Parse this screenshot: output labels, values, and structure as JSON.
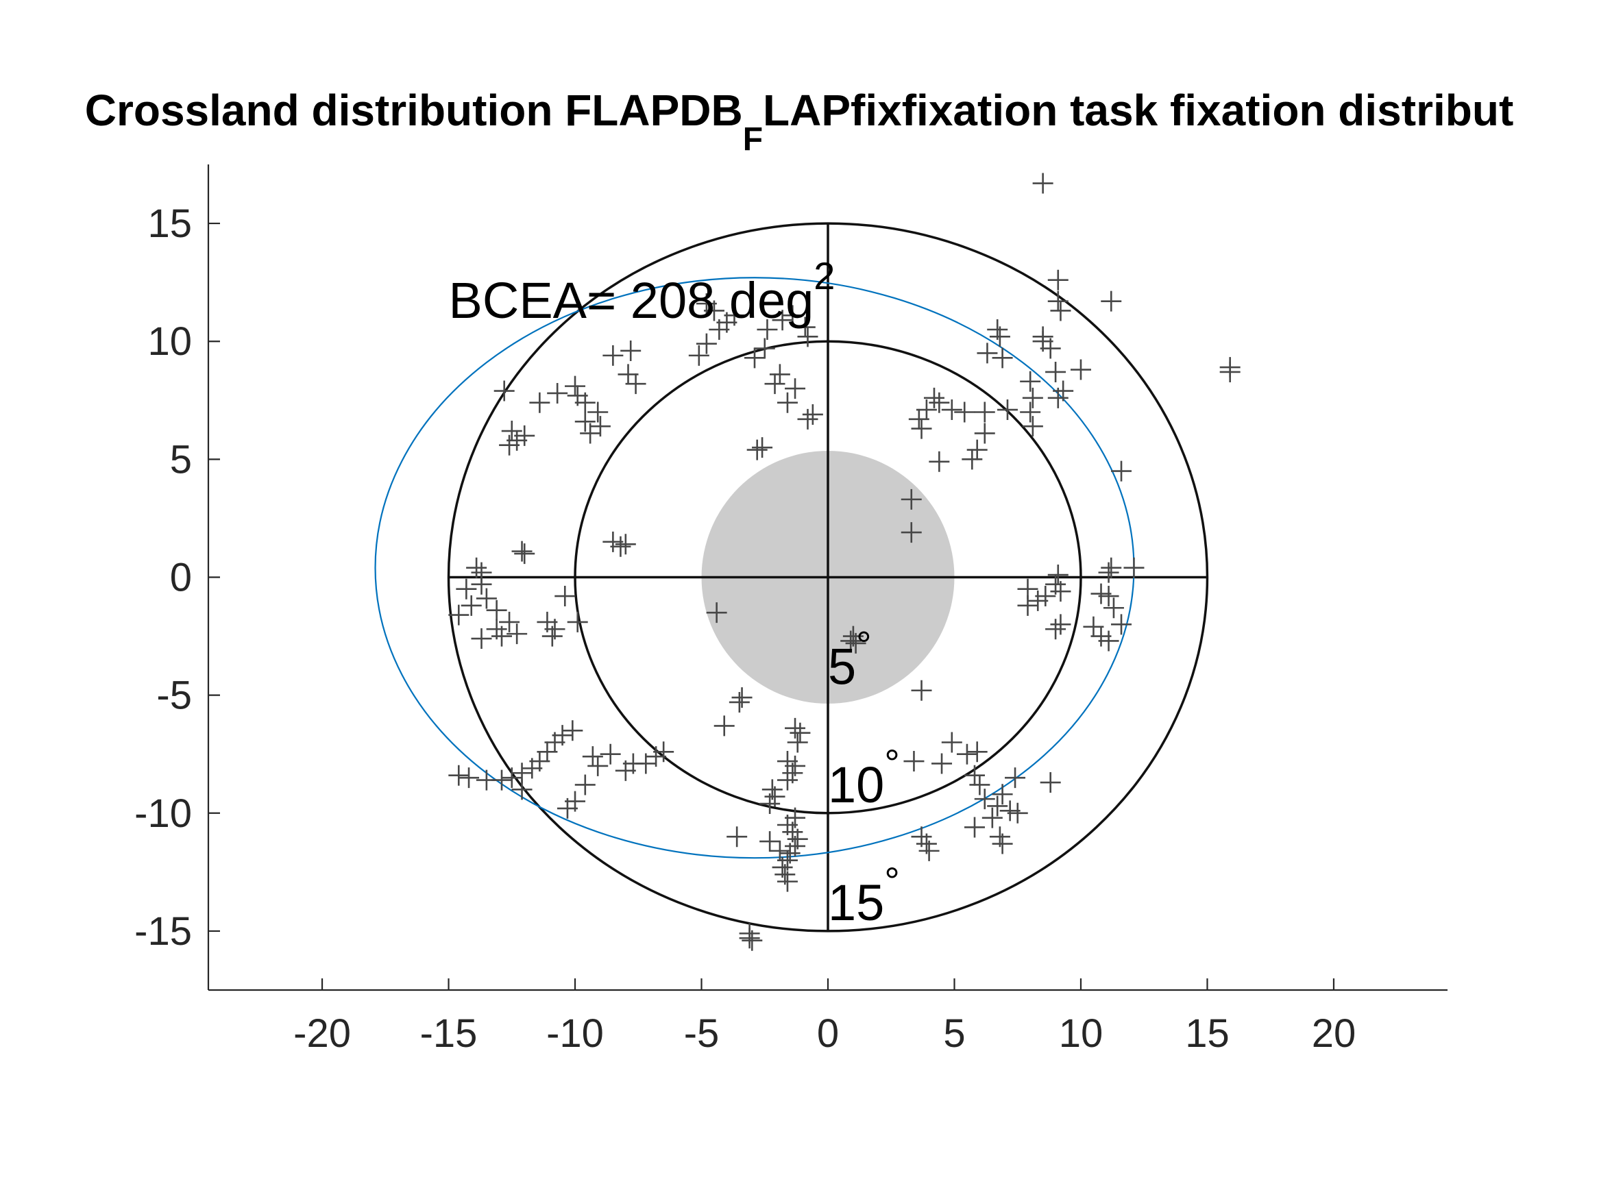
{
  "chart_data": {
    "type": "scatter",
    "title": {
      "prefix": "Crossland distribution FLAPDB",
      "subscript": "F",
      "suffix": "LAPfixfixation task fixation distribut"
    },
    "xlabel": "",
    "ylabel": "",
    "xlim": [
      -24.5,
      24.5
    ],
    "ylim": [
      17.5,
      -17.5
    ],
    "y_axis_reversed": true,
    "x_ticks": [
      -20,
      -15,
      -10,
      -5,
      0,
      5,
      10,
      15,
      20
    ],
    "y_ticks": [
      -15,
      -10,
      -5,
      0,
      5,
      10,
      15
    ],
    "grid": false,
    "polar_rings": [
      {
        "radius": 5,
        "label": "5",
        "superscript": "°",
        "fill": "#cccccc"
      },
      {
        "radius": 10,
        "label": "10",
        "superscript": "°"
      },
      {
        "radius": 15,
        "label": "15",
        "superscript": "°"
      }
    ],
    "crosshair_extent": 15,
    "bcea": {
      "prefix": "BCEA= 208 deg",
      "superscript": "2",
      "ellipse_center": [
        -2.9,
        0.4
      ],
      "ellipse_semi_axes": [
        15.0,
        12.3
      ],
      "color": "#0072bd"
    },
    "marker_color": "#474747",
    "series": [
      {
        "marker": "+",
        "points": [
          [
            -3.1,
            -15.3
          ],
          [
            -3.1,
            -15.1
          ],
          [
            -3.0,
            -15.4
          ],
          [
            -1.6,
            -12.9
          ],
          [
            -1.7,
            -12.6
          ],
          [
            -1.8,
            -12.3
          ],
          [
            -1.6,
            -12.0
          ],
          [
            -1.5,
            -11.7
          ],
          [
            -1.9,
            -11.6
          ],
          [
            -1.3,
            -11.4
          ],
          [
            -1.2,
            -11.1
          ],
          [
            -1.4,
            -10.8
          ],
          [
            -1.6,
            -10.5
          ],
          [
            -1.3,
            -10.2
          ],
          [
            -3.6,
            -11.0
          ],
          [
            -2.3,
            -11.2
          ],
          [
            -1.6,
            -8.6
          ],
          [
            -1.4,
            -8.3
          ],
          [
            -1.3,
            -8.0
          ],
          [
            -1.6,
            -7.8
          ],
          [
            -1.2,
            -7.0
          ],
          [
            -1.1,
            -6.6
          ],
          [
            -1.3,
            -6.4
          ],
          [
            -2.3,
            -9.6
          ],
          [
            -2.1,
            -9.3
          ],
          [
            -2.2,
            -9.0
          ],
          [
            -4.1,
            -6.3
          ],
          [
            -3.5,
            -5.3
          ],
          [
            -3.4,
            -5.1
          ],
          [
            -12.9,
            -8.6
          ],
          [
            -13.5,
            -8.6
          ],
          [
            -14.2,
            -8.5
          ],
          [
            -14.6,
            -8.4
          ],
          [
            -12.5,
            -8.5
          ],
          [
            -12.1,
            -8.3
          ],
          [
            -11.7,
            -8.1
          ],
          [
            -11.4,
            -7.8
          ],
          [
            -11.1,
            -7.4
          ],
          [
            -10.8,
            -7.0
          ],
          [
            -10.5,
            -6.7
          ],
          [
            -10.1,
            -6.5
          ],
          [
            -12.1,
            -9.0
          ],
          [
            -10.3,
            -9.8
          ],
          [
            -10.0,
            -9.5
          ],
          [
            -9.6,
            -8.8
          ],
          [
            -9.1,
            -8.0
          ],
          [
            -9.3,
            -7.6
          ],
          [
            -8.6,
            -7.5
          ],
          [
            -8.0,
            -8.2
          ],
          [
            -7.7,
            -7.9
          ],
          [
            -7.2,
            -7.9
          ],
          [
            -6.8,
            -7.6
          ],
          [
            -6.5,
            -7.4
          ],
          [
            -13.7,
            -2.6
          ],
          [
            -12.9,
            -2.5
          ],
          [
            -12.3,
            -2.4
          ],
          [
            -13.1,
            -2.2
          ],
          [
            -12.6,
            -1.9
          ],
          [
            -10.9,
            -2.5
          ],
          [
            -10.8,
            -2.2
          ],
          [
            -11.1,
            -1.9
          ],
          [
            -14.6,
            -1.6
          ],
          [
            -14.1,
            -1.2
          ],
          [
            -13.5,
            -0.9
          ],
          [
            -13.1,
            -1.4
          ],
          [
            -14.3,
            -0.5
          ],
          [
            -13.7,
            -0.3
          ],
          [
            -13.7,
            0.2
          ],
          [
            -13.9,
            0.4
          ],
          [
            -9.9,
            -1.9
          ],
          [
            -10.4,
            -0.8
          ],
          [
            -12.0,
            1.0
          ],
          [
            -12.1,
            1.1
          ],
          [
            -4.4,
            -1.5
          ],
          [
            -8.2,
            1.3
          ],
          [
            -8.0,
            1.4
          ],
          [
            -8.5,
            1.5
          ],
          [
            -12.6,
            5.6
          ],
          [
            -12.3,
            5.8
          ],
          [
            -12.0,
            6.0
          ],
          [
            -12.5,
            6.2
          ],
          [
            -9.4,
            6.1
          ],
          [
            -9.0,
            6.4
          ],
          [
            -9.6,
            6.6
          ],
          [
            -12.8,
            7.9
          ],
          [
            -11.4,
            7.4
          ],
          [
            -10.7,
            7.8
          ],
          [
            -10.0,
            8.1
          ],
          [
            -9.9,
            7.7
          ],
          [
            -9.6,
            7.4
          ],
          [
            -9.1,
            7.0
          ],
          [
            -7.6,
            8.2
          ],
          [
            -7.9,
            8.6
          ],
          [
            -8.5,
            9.4
          ],
          [
            -7.8,
            9.6
          ],
          [
            -5.1,
            9.4
          ],
          [
            -4.8,
            9.9
          ],
          [
            -4.3,
            10.5
          ],
          [
            -4.0,
            10.8
          ],
          [
            -3.7,
            11.1
          ],
          [
            -4.5,
            11.3
          ],
          [
            -4.8,
            11.6
          ],
          [
            -2.9,
            9.3
          ],
          [
            -2.5,
            9.7
          ],
          [
            -2.4,
            10.5
          ],
          [
            -1.8,
            10.9
          ],
          [
            -1.4,
            11.1
          ],
          [
            -0.9,
            10.6
          ],
          [
            -0.8,
            10.2
          ],
          [
            -1.3,
            8.0
          ],
          [
            -1.9,
            8.6
          ],
          [
            -2.1,
            8.2
          ],
          [
            -1.6,
            7.4
          ],
          [
            -0.6,
            6.9
          ],
          [
            -0.8,
            6.7
          ],
          [
            -2.8,
            5.4
          ],
          [
            -2.6,
            5.5
          ],
          [
            0.9,
            -2.7
          ],
          [
            1.0,
            -2.5
          ],
          [
            1.1,
            -2.8
          ],
          [
            3.4,
            -7.8
          ],
          [
            4.5,
            -7.9
          ],
          [
            5.5,
            -7.5
          ],
          [
            5.9,
            -7.4
          ],
          [
            3.7,
            -4.8
          ],
          [
            4.9,
            -7.0
          ],
          [
            3.9,
            -11.3
          ],
          [
            3.7,
            -11.0
          ],
          [
            4.0,
            -11.6
          ],
          [
            5.8,
            -10.6
          ],
          [
            6.5,
            -10.2
          ],
          [
            6.7,
            -9.7
          ],
          [
            7.2,
            -9.9
          ],
          [
            7.5,
            -10.0
          ],
          [
            6.9,
            -9.2
          ],
          [
            6.2,
            -9.4
          ],
          [
            6.0,
            -8.8
          ],
          [
            5.8,
            -8.4
          ],
          [
            6.9,
            -11.3
          ],
          [
            7.4,
            -8.5
          ],
          [
            8.8,
            -8.7
          ],
          [
            6.8,
            -11.0
          ],
          [
            7.9,
            -1.2
          ],
          [
            8.3,
            -1.0
          ],
          [
            8.6,
            -0.8
          ],
          [
            9.0,
            -0.3
          ],
          [
            9.1,
            0.1
          ],
          [
            9.2,
            -0.6
          ],
          [
            7.9,
            -0.5
          ],
          [
            9.2,
            -2.0
          ],
          [
            9.0,
            -2.2
          ],
          [
            10.5,
            -2.1
          ],
          [
            10.8,
            -2.5
          ],
          [
            11.1,
            -2.7
          ],
          [
            11.6,
            -2.0
          ],
          [
            11.3,
            -1.3
          ],
          [
            11.1,
            -0.8
          ],
          [
            11.1,
            0.2
          ],
          [
            11.2,
            0.4
          ],
          [
            12.1,
            0.4
          ],
          [
            10.8,
            -0.7
          ],
          [
            3.3,
            1.9
          ],
          [
            3.3,
            3.3
          ],
          [
            11.6,
            4.5
          ],
          [
            4.4,
            4.9
          ],
          [
            5.7,
            5.0
          ],
          [
            5.9,
            5.4
          ],
          [
            6.2,
            6.1
          ],
          [
            3.7,
            6.3
          ],
          [
            3.6,
            6.7
          ],
          [
            3.9,
            7.1
          ],
          [
            4.4,
            7.4
          ],
          [
            4.2,
            7.6
          ],
          [
            4.9,
            7.1
          ],
          [
            5.4,
            7.0
          ],
          [
            6.2,
            7.0
          ],
          [
            7.1,
            7.1
          ],
          [
            8.1,
            6.4
          ],
          [
            8.0,
            7.0
          ],
          [
            8.1,
            7.6
          ],
          [
            8.0,
            8.3
          ],
          [
            9.1,
            7.6
          ],
          [
            9.3,
            7.9
          ],
          [
            10.0,
            8.8
          ],
          [
            9.0,
            8.7
          ],
          [
            6.3,
            9.5
          ],
          [
            6.8,
            10.2
          ],
          [
            6.7,
            10.5
          ],
          [
            6.9,
            9.3
          ],
          [
            8.5,
            10.2
          ],
          [
            8.5,
            10.0
          ],
          [
            8.8,
            9.7
          ],
          [
            9.2,
            11.3
          ],
          [
            9.1,
            11.7
          ],
          [
            9.1,
            12.6
          ],
          [
            11.2,
            11.7
          ],
          [
            8.5,
            16.7
          ],
          [
            15.9,
            8.7
          ],
          [
            15.9,
            8.9
          ]
        ]
      }
    ]
  }
}
